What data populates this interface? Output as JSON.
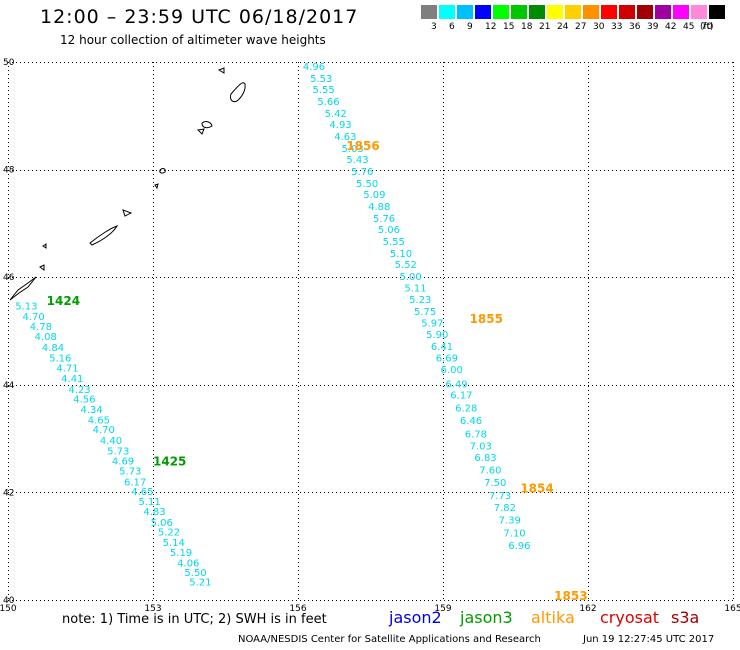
{
  "header": {
    "title": "12:00 – 23:59 UTC 06/18/2017",
    "subtitle": "12 hour collection of altimeter wave heights"
  },
  "legend": {
    "unit": "(ft)",
    "items": [
      {
        "label": "3",
        "color": "#7f7f7f"
      },
      {
        "label": "6",
        "color": "#00ffff"
      },
      {
        "label": "9",
        "color": "#00bfff"
      },
      {
        "label": "12",
        "color": "#0000ff"
      },
      {
        "label": "15",
        "color": "#00ff00"
      },
      {
        "label": "18",
        "color": "#00c800"
      },
      {
        "label": "21",
        "color": "#008c00"
      },
      {
        "label": "24",
        "color": "#ffff00"
      },
      {
        "label": "27",
        "color": "#ffd000"
      },
      {
        "label": "30",
        "color": "#ff9000"
      },
      {
        "label": "33",
        "color": "#ff0000"
      },
      {
        "label": "36",
        "color": "#d00000"
      },
      {
        "label": "39",
        "color": "#a00000"
      },
      {
        "label": "42",
        "color": "#a000a0"
      },
      {
        "label": "45",
        "color": "#ff00ff"
      },
      {
        "label": "70",
        "color": "#ff88d8"
      },
      {
        "label": "",
        "color": "#000000"
      }
    ]
  },
  "footer": {
    "note": "note:  1) Time is in UTC;  2) SWH is in feet",
    "satellites": [
      {
        "name": "jason2",
        "color": "#0000e0"
      },
      {
        "name": "jason3",
        "color": "#009c00"
      },
      {
        "name": "altika",
        "color": "#ff9900"
      },
      {
        "name": "cryosat",
        "color": "#e00000"
      },
      {
        "name": "s3a",
        "color": "#a00000"
      }
    ],
    "credit": "NOAA/NESDIS Center for Satellite Applications and Research",
    "timestamp": "Jun 19 12:27:45 UTC 2017"
  },
  "chart_data": {
    "type": "scatter",
    "xlim": [
      150,
      165
    ],
    "ylim": [
      40,
      50
    ],
    "x_ticks": [
      150,
      153,
      156,
      159,
      162,
      165
    ],
    "y_ticks": [
      40,
      42,
      44,
      46,
      48,
      50
    ],
    "grid": true,
    "point_color": "#00d8e8",
    "series": [
      {
        "name": "altika",
        "color": "#ff9900",
        "points": [
          {
            "x": 156.1,
            "y": 49.85,
            "v": "4.96"
          },
          {
            "x": 156.25,
            "y": 49.63,
            "v": "5.53"
          },
          {
            "x": 156.3,
            "y": 49.42,
            "v": "5.55"
          },
          {
            "x": 156.4,
            "y": 49.2,
            "v": "5.66"
          },
          {
            "x": 156.55,
            "y": 48.98,
            "v": "5.42"
          },
          {
            "x": 156.65,
            "y": 48.77,
            "v": "4.93"
          },
          {
            "x": 156.75,
            "y": 48.55,
            "v": "4.63"
          },
          {
            "x": 156.9,
            "y": 48.33,
            "v": "5.03"
          },
          {
            "x": 157.0,
            "y": 48.12,
            "v": "5.43"
          },
          {
            "x": 157.1,
            "y": 47.9,
            "v": "5.76"
          },
          {
            "x": 157.2,
            "y": 47.68,
            "v": "5.50"
          },
          {
            "x": 157.35,
            "y": 47.47,
            "v": "5.09"
          },
          {
            "x": 157.45,
            "y": 47.25,
            "v": "4.88"
          },
          {
            "x": 157.55,
            "y": 47.03,
            "v": "5.76"
          },
          {
            "x": 157.65,
            "y": 46.82,
            "v": "5.06"
          },
          {
            "x": 157.75,
            "y": 46.6,
            "v": "5.55"
          },
          {
            "x": 157.9,
            "y": 46.38,
            "v": "5.10"
          },
          {
            "x": 158.0,
            "y": 46.17,
            "v": "5.52"
          },
          {
            "x": 158.1,
            "y": 45.95,
            "v": "5.00"
          },
          {
            "x": 158.2,
            "y": 45.73,
            "v": "5.11"
          },
          {
            "x": 158.3,
            "y": 45.52,
            "v": "5.23"
          },
          {
            "x": 158.4,
            "y": 45.3,
            "v": "5.75"
          },
          {
            "x": 158.55,
            "y": 45.08,
            "v": "5.97"
          },
          {
            "x": 158.65,
            "y": 44.87,
            "v": "5.90"
          },
          {
            "x": 158.75,
            "y": 44.65,
            "v": "6.41"
          },
          {
            "x": 158.85,
            "y": 44.43,
            "v": "6.69"
          },
          {
            "x": 158.95,
            "y": 44.22,
            "v": "6.00"
          },
          {
            "x": 159.05,
            "y": 43.95,
            "v": "6.49"
          },
          {
            "x": 159.15,
            "y": 43.75,
            "v": "6.17"
          },
          {
            "x": 159.25,
            "y": 43.5,
            "v": "6.28"
          },
          {
            "x": 159.35,
            "y": 43.27,
            "v": "6.46"
          },
          {
            "x": 159.45,
            "y": 43.02,
            "v": "6.78"
          },
          {
            "x": 159.55,
            "y": 42.8,
            "v": "7.03"
          },
          {
            "x": 159.65,
            "y": 42.58,
            "v": "6.83"
          },
          {
            "x": 159.75,
            "y": 42.35,
            "v": "7.60"
          },
          {
            "x": 159.85,
            "y": 42.12,
            "v": "7.50"
          },
          {
            "x": 159.95,
            "y": 41.88,
            "v": "7.73"
          },
          {
            "x": 160.05,
            "y": 41.65,
            "v": "7.82"
          },
          {
            "x": 160.15,
            "y": 41.42,
            "v": "7.39"
          },
          {
            "x": 160.25,
            "y": 41.18,
            "v": "7.10"
          },
          {
            "x": 160.35,
            "y": 40.95,
            "v": "6.96"
          }
        ],
        "times": [
          {
            "x": 157.0,
            "y": 48.36,
            "t": "1856"
          },
          {
            "x": 159.55,
            "y": 45.15,
            "t": "1855"
          },
          {
            "x": 160.6,
            "y": 42.0,
            "t": "1854"
          },
          {
            "x": 161.3,
            "y": 40.0,
            "t": "1853"
          }
        ]
      },
      {
        "name": "jason3",
        "color": "#009c00",
        "points": [
          {
            "x": 150.15,
            "y": 45.4,
            "v": "5.13"
          },
          {
            "x": 150.3,
            "y": 45.2,
            "v": "4.70"
          },
          {
            "x": 150.45,
            "y": 45.02,
            "v": "4.78"
          },
          {
            "x": 150.55,
            "y": 44.83,
            "v": "4.08"
          },
          {
            "x": 150.7,
            "y": 44.63,
            "v": "4.84"
          },
          {
            "x": 150.85,
            "y": 44.43,
            "v": "5.16"
          },
          {
            "x": 151.0,
            "y": 44.25,
            "v": "4.71"
          },
          {
            "x": 151.1,
            "y": 44.05,
            "v": "4.41"
          },
          {
            "x": 151.25,
            "y": 43.85,
            "v": "4.23"
          },
          {
            "x": 151.35,
            "y": 43.67,
            "v": "4.56"
          },
          {
            "x": 151.5,
            "y": 43.48,
            "v": "4.34"
          },
          {
            "x": 151.65,
            "y": 43.28,
            "v": "4.65"
          },
          {
            "x": 151.75,
            "y": 43.1,
            "v": "4.70"
          },
          {
            "x": 151.9,
            "y": 42.9,
            "v": "4.40"
          },
          {
            "x": 152.05,
            "y": 42.7,
            "v": "5.73"
          },
          {
            "x": 152.15,
            "y": 42.52,
            "v": "4.69"
          },
          {
            "x": 152.3,
            "y": 42.33,
            "v": "5.73"
          },
          {
            "x": 152.4,
            "y": 42.13,
            "v": "6.17"
          },
          {
            "x": 152.55,
            "y": 41.95,
            "v": "4.65"
          },
          {
            "x": 152.7,
            "y": 41.77,
            "v": "5.11"
          },
          {
            "x": 152.8,
            "y": 41.58,
            "v": "4.83"
          },
          {
            "x": 152.95,
            "y": 41.38,
            "v": "5.06"
          },
          {
            "x": 153.1,
            "y": 41.2,
            "v": "5.22"
          },
          {
            "x": 153.2,
            "y": 41.0,
            "v": "5.14"
          },
          {
            "x": 153.35,
            "y": 40.82,
            "v": "5.19"
          },
          {
            "x": 153.5,
            "y": 40.62,
            "v": "4.06"
          },
          {
            "x": 153.65,
            "y": 40.45,
            "v": "5.50"
          },
          {
            "x": 153.75,
            "y": 40.27,
            "v": "5.21"
          }
        ],
        "times": [
          {
            "x": 150.8,
            "y": 45.48,
            "t": "1424"
          },
          {
            "x": 153.0,
            "y": 42.5,
            "t": "1425"
          }
        ]
      }
    ]
  }
}
